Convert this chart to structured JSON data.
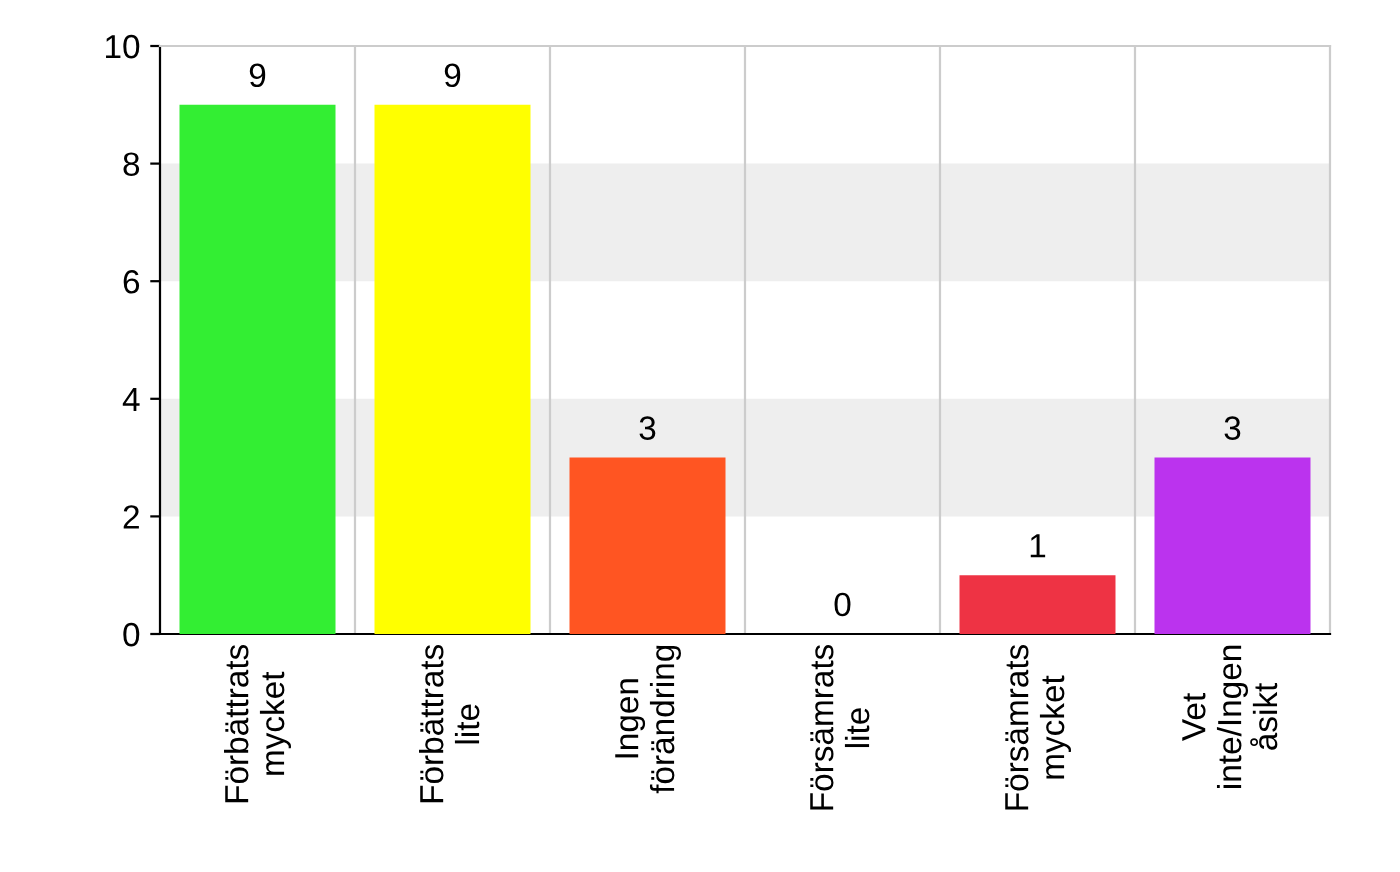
{
  "chart_data": {
    "type": "bar",
    "categories": [
      "Förbättrats\nmycket",
      "Förbättrats\nlite",
      "Ingen\nförändring",
      "Försämrats\nlite",
      "Försämrats\nmycket",
      "Vet\ninte/Ingen\nåsikt"
    ],
    "values": [
      9,
      9,
      3,
      0,
      1,
      3
    ],
    "colors": [
      "#33ee33",
      "#ffff00",
      "#ff5522",
      null,
      "#ee3344",
      "#bb33ee"
    ],
    "ylim": [
      0,
      10
    ],
    "yticks": [
      0,
      2,
      4,
      6,
      8,
      10
    ],
    "data_labels": true,
    "grid": "x",
    "bands": [
      {
        "axis": "y",
        "from": 2,
        "to": 4,
        "color": "#eeeeee"
      },
      {
        "axis": "y",
        "from": 6,
        "to": 8,
        "color": "#eeeeee"
      }
    ]
  }
}
